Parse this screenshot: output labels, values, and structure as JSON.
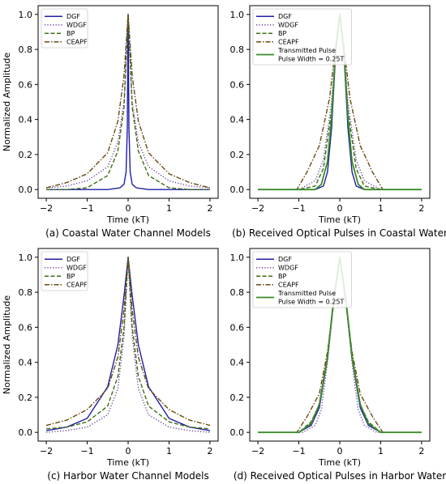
{
  "chart_data": [
    {
      "type": "line",
      "caption": "(a) Coastal Water Channel Models",
      "xlabel": "Time (kT)",
      "ylabel": "Normalized Amplitude",
      "xlim": [
        -2.2,
        2.2
      ],
      "ylim": [
        -0.05,
        1.05
      ],
      "xticks": [
        -2,
        -1,
        0,
        1,
        2
      ],
      "yticks": [
        0.0,
        0.2,
        0.4,
        0.6,
        0.8,
        1.0
      ],
      "legend": "top-left",
      "series": [
        {
          "name": "DGF",
          "style": "solid",
          "color": "#1f1fa8",
          "x": [
            -2,
            -1,
            -0.5,
            -0.2,
            -0.1,
            -0.05,
            -0.02,
            0,
            0.02,
            0.05,
            0.1,
            0.2,
            0.5,
            1,
            2
          ],
          "y": [
            0.0,
            0.0,
            0.0,
            0.01,
            0.03,
            0.1,
            0.35,
            1.0,
            0.35,
            0.1,
            0.03,
            0.01,
            0.0,
            0.0,
            0.0
          ]
        },
        {
          "name": "WDGF",
          "style": "dotted",
          "color": "#6b3fa0",
          "x": [
            -2,
            -1.5,
            -1,
            -0.5,
            -0.25,
            -0.1,
            0,
            0.1,
            0.25,
            0.5,
            1,
            1.5,
            2
          ],
          "y": [
            0.01,
            0.02,
            0.05,
            0.13,
            0.27,
            0.5,
            1.0,
            0.5,
            0.27,
            0.13,
            0.05,
            0.02,
            0.01
          ]
        },
        {
          "name": "BP",
          "style": "dashed",
          "color": "#3e6e14",
          "x": [
            -2,
            -1.5,
            -1,
            -0.5,
            -0.25,
            -0.1,
            0,
            0.1,
            0.25,
            0.5,
            1,
            1.5,
            2
          ],
          "y": [
            0.0,
            0.0,
            0.01,
            0.08,
            0.22,
            0.47,
            1.0,
            0.47,
            0.22,
            0.08,
            0.01,
            0.0,
            0.0
          ]
        },
        {
          "name": "CEAPF",
          "style": "dashdot",
          "color": "#6b4a12",
          "x": [
            -2,
            -1.5,
            -1,
            -0.5,
            -0.25,
            -0.1,
            0,
            0.1,
            0.25,
            0.5,
            1,
            1.5,
            2
          ],
          "y": [
            0.01,
            0.04,
            0.09,
            0.21,
            0.39,
            0.65,
            1.0,
            0.65,
            0.39,
            0.21,
            0.09,
            0.04,
            0.01
          ]
        }
      ]
    },
    {
      "type": "line",
      "caption": "(b) Received Optical Pulses in Coastal Water",
      "xlabel": "Time (kT)",
      "ylabel": "",
      "xlim": [
        -2.2,
        2.2
      ],
      "ylim": [
        -0.05,
        1.05
      ],
      "xticks": [
        -2,
        -1,
        0,
        1,
        2
      ],
      "yticks": [
        0.0,
        0.2,
        0.4,
        0.6,
        0.8,
        1.0
      ],
      "legend": "top-left",
      "series": [
        {
          "name": "DGF",
          "style": "solid",
          "color": "#1f1fa8",
          "x": [
            -2,
            -0.6,
            -0.4,
            -0.3,
            -0.2,
            -0.1,
            0,
            0.1,
            0.2,
            0.3,
            0.4,
            0.6,
            2
          ],
          "y": [
            0.0,
            0.0,
            0.02,
            0.1,
            0.35,
            0.78,
            1.0,
            0.78,
            0.35,
            0.1,
            0.02,
            0.0,
            0.0
          ]
        },
        {
          "name": "WDGF",
          "style": "dotted",
          "color": "#6b3fa0",
          "x": [
            -2,
            -1.0,
            -0.6,
            -0.4,
            -0.2,
            -0.1,
            0,
            0.1,
            0.2,
            0.4,
            0.6,
            1.0,
            2
          ],
          "y": [
            0.0,
            0.0,
            0.05,
            0.17,
            0.5,
            0.8,
            1.0,
            0.8,
            0.5,
            0.17,
            0.05,
            0.0,
            0.0
          ]
        },
        {
          "name": "BP",
          "style": "dashed",
          "color": "#3e6e14",
          "x": [
            -2,
            -1.0,
            -0.6,
            -0.4,
            -0.2,
            -0.1,
            0,
            0.1,
            0.2,
            0.4,
            0.6,
            1.0,
            2
          ],
          "y": [
            0.0,
            0.0,
            0.02,
            0.12,
            0.45,
            0.78,
            1.0,
            0.78,
            0.45,
            0.12,
            0.02,
            0.0,
            0.0
          ]
        },
        {
          "name": "CEAPF",
          "style": "dashdot",
          "color": "#6b4a12",
          "x": [
            -2,
            -1.05,
            -0.8,
            -0.5,
            -0.25,
            -0.1,
            0,
            0.1,
            0.25,
            0.5,
            0.8,
            1.05,
            2
          ],
          "y": [
            0.0,
            0.0,
            0.1,
            0.25,
            0.52,
            0.82,
            1.0,
            0.82,
            0.52,
            0.25,
            0.1,
            0.0,
            0.0
          ]
        },
        {
          "name": "Transmitted Pulse\nPulse Width = 0.25T",
          "style": "solid-thick",
          "color": "#3a8a2a",
          "x": [
            -2,
            -0.6,
            -0.45,
            -0.3,
            -0.2,
            -0.1,
            0,
            0.1,
            0.2,
            0.3,
            0.45,
            0.6,
            2
          ],
          "y": [
            0.0,
            0.0,
            0.03,
            0.16,
            0.41,
            0.8,
            1.0,
            0.8,
            0.41,
            0.16,
            0.03,
            0.0,
            0.0
          ]
        }
      ]
    },
    {
      "type": "line",
      "caption": "(c) Harbor Water Channel Models",
      "xlabel": "Time (kT)",
      "ylabel": "Normalized Amplitude",
      "xlim": [
        -2.2,
        2.2
      ],
      "ylim": [
        -0.05,
        1.05
      ],
      "xticks": [
        -2,
        -1,
        0,
        1,
        2
      ],
      "yticks": [
        0.0,
        0.2,
        0.4,
        0.6,
        0.8,
        1.0
      ],
      "legend": "top-left",
      "series": [
        {
          "name": "DGF",
          "style": "solid",
          "color": "#1f1fa8",
          "x": [
            -2,
            -1.5,
            -1,
            -0.5,
            -0.25,
            -0.1,
            0,
            0.1,
            0.25,
            0.5,
            1,
            1.5,
            2
          ],
          "y": [
            0.01,
            0.03,
            0.08,
            0.26,
            0.5,
            0.78,
            1.0,
            0.78,
            0.5,
            0.26,
            0.08,
            0.03,
            0.01
          ]
        },
        {
          "name": "WDGF",
          "style": "dotted",
          "color": "#6b3fa0",
          "x": [
            -2,
            -1.5,
            -1,
            -0.5,
            -0.25,
            -0.1,
            0,
            0.1,
            0.25,
            0.5,
            1,
            1.5,
            2
          ],
          "y": [
            0.0,
            0.01,
            0.03,
            0.1,
            0.25,
            0.55,
            1.0,
            0.55,
            0.25,
            0.1,
            0.03,
            0.01,
            0.0
          ]
        },
        {
          "name": "BP",
          "style": "dashed",
          "color": "#3e6e14",
          "x": [
            -2,
            -1.5,
            -1,
            -0.5,
            -0.25,
            -0.1,
            0,
            0.1,
            0.25,
            0.5,
            1,
            1.5,
            2
          ],
          "y": [
            0.02,
            0.03,
            0.06,
            0.15,
            0.32,
            0.6,
            1.0,
            0.6,
            0.32,
            0.15,
            0.06,
            0.03,
            0.02
          ]
        },
        {
          "name": "CEAPF",
          "style": "dashdot",
          "color": "#6b4a12",
          "x": [
            -2,
            -1.5,
            -1,
            -0.5,
            -0.25,
            -0.1,
            0,
            0.1,
            0.25,
            0.5,
            1,
            1.5,
            2
          ],
          "y": [
            0.04,
            0.07,
            0.13,
            0.25,
            0.43,
            0.7,
            1.0,
            0.7,
            0.43,
            0.25,
            0.13,
            0.07,
            0.04
          ]
        }
      ]
    },
    {
      "type": "line",
      "caption": "(d) Received Optical Pulses in Harbor Water",
      "xlabel": "Time (kT)",
      "ylabel": "",
      "xlim": [
        -2.2,
        2.2
      ],
      "ylim": [
        -0.05,
        1.05
      ],
      "xticks": [
        -2,
        -1,
        0,
        1,
        2
      ],
      "yticks": [
        0.0,
        0.2,
        0.4,
        0.6,
        0.8,
        1.0
      ],
      "legend": "top-left",
      "series": [
        {
          "name": "DGF",
          "style": "solid",
          "color": "#1f1fa8",
          "x": [
            -2,
            -1.0,
            -0.7,
            -0.5,
            -0.3,
            -0.15,
            0,
            0.15,
            0.3,
            0.5,
            0.7,
            1.0,
            2
          ],
          "y": [
            0.0,
            0.0,
            0.04,
            0.14,
            0.42,
            0.75,
            1.0,
            0.75,
            0.42,
            0.14,
            0.04,
            0.0,
            0.0
          ]
        },
        {
          "name": "WDGF",
          "style": "dotted",
          "color": "#6b3fa0",
          "x": [
            -2,
            -0.9,
            -0.6,
            -0.45,
            -0.3,
            -0.15,
            0,
            0.15,
            0.3,
            0.45,
            0.6,
            0.9,
            2
          ],
          "y": [
            0.0,
            0.0,
            0.04,
            0.13,
            0.4,
            0.76,
            1.0,
            0.76,
            0.4,
            0.13,
            0.04,
            0.0,
            0.0
          ]
        },
        {
          "name": "BP",
          "style": "dashed",
          "color": "#3e6e14",
          "x": [
            -2,
            -1.0,
            -0.7,
            -0.5,
            -0.3,
            -0.15,
            0,
            0.15,
            0.3,
            0.5,
            0.7,
            1.0,
            2
          ],
          "y": [
            0.0,
            0.0,
            0.06,
            0.16,
            0.42,
            0.74,
            1.0,
            0.74,
            0.42,
            0.16,
            0.06,
            0.0,
            0.0
          ]
        },
        {
          "name": "CEAPF",
          "style": "dashdot",
          "color": "#6b4a12",
          "x": [
            -2,
            -1.05,
            -0.8,
            -0.5,
            -0.3,
            -0.15,
            0,
            0.15,
            0.3,
            0.5,
            0.8,
            1.05,
            2
          ],
          "y": [
            0.0,
            0.0,
            0.09,
            0.22,
            0.46,
            0.74,
            1.0,
            0.74,
            0.46,
            0.22,
            0.09,
            0.0,
            0.0
          ]
        },
        {
          "name": "Transmitted Pulse\nPulse Width = 0.25T",
          "style": "solid-thick",
          "color": "#3a8a2a",
          "x": [
            -2,
            -1.0,
            -0.7,
            -0.5,
            -0.3,
            -0.15,
            0,
            0.15,
            0.3,
            0.5,
            0.7,
            1.0,
            2
          ],
          "y": [
            0.0,
            0.0,
            0.05,
            0.16,
            0.43,
            0.76,
            1.0,
            0.76,
            0.43,
            0.16,
            0.05,
            0.0,
            0.0
          ]
        }
      ]
    }
  ]
}
